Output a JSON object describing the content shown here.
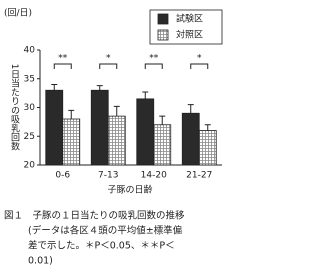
{
  "chart_data": {
    "type": "bar",
    "y_unit": "(回/日)",
    "ylabel": "1日当たりの吸乳回数",
    "xlabel": "子豚の日齢",
    "categories": [
      "0-6",
      "7-13",
      "14-20",
      "21-27"
    ],
    "series": [
      {
        "name": "試験区",
        "color": "#2a2a2a",
        "values": [
          33,
          33,
          31.5,
          29
        ],
        "errors": [
          1,
          0.8,
          1.2,
          1.5
        ]
      },
      {
        "name": "対照区",
        "color": "#d8d8d8",
        "values": [
          28,
          28.5,
          27,
          26
        ],
        "errors": [
          1.5,
          1.7,
          1.5,
          1
        ]
      }
    ],
    "significance": [
      "**",
      "*",
      "**",
      "*"
    ],
    "ylim": [
      20,
      40
    ],
    "yticks": [
      20,
      25,
      30,
      35,
      40
    ],
    "legend": "upper right",
    "caption": [
      "図１　子豚の１日当たりの吸乳回数の推移",
      "(データは各区４頭の平均値±標準偏",
      "差で示した。＊P＜0.05、＊＊P＜",
      "0.01)"
    ]
  }
}
